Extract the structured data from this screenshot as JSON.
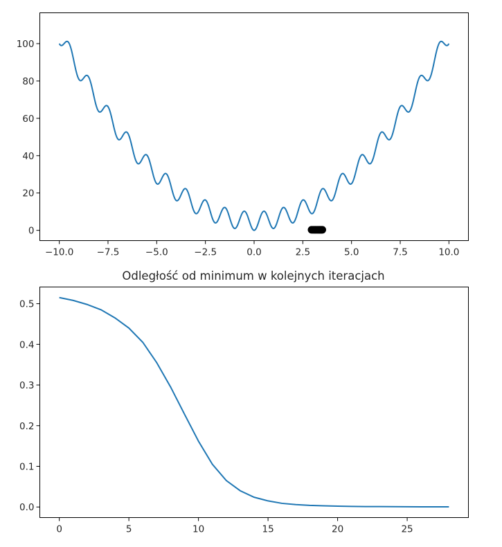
{
  "figure": {
    "background": "#ffffff",
    "series_color": "#1f77b4",
    "marker_color": "#000000"
  },
  "chart_data": [
    {
      "type": "line",
      "title": "",
      "xlabel": "",
      "ylabel": "",
      "function_shown": "x^2 + 10*sin(pi*x)^2 (sampled curve)",
      "x_range": [
        -10,
        10
      ],
      "xlim": [
        -11.0,
        11.0
      ],
      "ylim": [
        -5.5,
        116.5
      ],
      "xticks": [
        -10.0,
        -7.5,
        -5.0,
        -2.5,
        0.0,
        2.5,
        5.0,
        7.5,
        10.0
      ],
      "xtick_labels": [
        "−10.0",
        "−7.5",
        "−5.0",
        "−2.5",
        "0.0",
        "2.5",
        "5.0",
        "7.5",
        "10.0"
      ],
      "yticks": [
        0,
        20,
        40,
        60,
        80,
        100
      ],
      "ytick_labels": [
        "0",
        "20",
        "40",
        "60",
        "80",
        "100"
      ],
      "grid": false,
      "legend": "none",
      "series": [
        {
          "kind": "curve",
          "x_start": -10,
          "x_end": 10,
          "samples": 801
        }
      ],
      "scatter": {
        "x": [
          2.95,
          3.02,
          3.08,
          3.13,
          3.18,
          3.24,
          3.29,
          3.34,
          3.38,
          3.42,
          3.46,
          3.5
        ],
        "y": [
          0.3,
          0.3,
          0.3,
          0.3,
          0.3,
          0.3,
          0.3,
          0.3,
          0.3,
          0.3,
          0.3,
          0.3
        ]
      }
    },
    {
      "type": "line",
      "title": "Odległość od minimum w kolejnych iteracjach",
      "xlabel": "",
      "ylabel": "",
      "xlim": [
        -1.4,
        29.4
      ],
      "ylim": [
        -0.026,
        0.541
      ],
      "xticks": [
        0,
        5,
        10,
        15,
        20,
        25
      ],
      "xtick_labels": [
        "0",
        "5",
        "10",
        "15",
        "20",
        "25"
      ],
      "yticks": [
        0.0,
        0.1,
        0.2,
        0.3,
        0.4,
        0.5
      ],
      "ytick_labels": [
        "0.0",
        "0.1",
        "0.2",
        "0.3",
        "0.4",
        "0.5"
      ],
      "grid": false,
      "legend": "none",
      "x": [
        0,
        1,
        2,
        3,
        4,
        5,
        6,
        7,
        8,
        9,
        10,
        11,
        12,
        13,
        14,
        15,
        16,
        17,
        18,
        19,
        20,
        21,
        22,
        23,
        24,
        25,
        26,
        27,
        28
      ],
      "values": [
        0.515,
        0.508,
        0.498,
        0.485,
        0.465,
        0.44,
        0.405,
        0.355,
        0.295,
        0.228,
        0.162,
        0.105,
        0.065,
        0.04,
        0.024,
        0.015,
        0.009,
        0.006,
        0.004,
        0.003,
        0.002,
        0.0015,
        0.001,
        0.001,
        0.0008,
        0.0006,
        0.0005,
        0.0004,
        0.0003
      ]
    }
  ]
}
